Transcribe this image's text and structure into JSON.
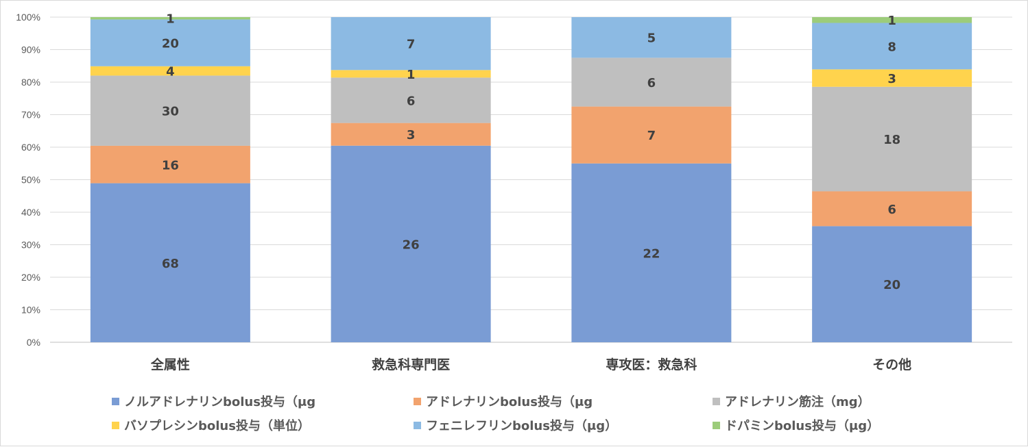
{
  "chart_data": {
    "type": "bar",
    "stacked": "percent",
    "categories": [
      "全属性",
      "救急科専門医",
      "専攻医：救急科",
      "その他"
    ],
    "series": [
      {
        "name": "ノルアドレナリンbolus投与（μg）",
        "label": "ノルアドレナリンbolus投与（μg",
        "color": "#7a9cd4",
        "values": [
          68,
          26,
          22,
          20
        ]
      },
      {
        "name": "アドレナリンbolus投与（μg）",
        "label": "アドレナリンbolus投与（μg",
        "color": "#f2a36e",
        "values": [
          16,
          3,
          7,
          6
        ]
      },
      {
        "name": "アドレナリン筋注（mg）",
        "label": "アドレナリン筋注（mg）",
        "color": "#bfbfbf",
        "values": [
          30,
          6,
          6,
          18
        ]
      },
      {
        "name": "バソプレシンbolus投与（単位）",
        "label": "バソプレシンbolus投与（単位）",
        "color": "#ffd34d",
        "values": [
          4,
          1,
          0,
          3
        ]
      },
      {
        "name": "フェニレフリンbolus投与（μg）",
        "label": "フェニレフリンbolus投与（μg）",
        "color": "#8cbae3",
        "values": [
          20,
          7,
          5,
          8
        ]
      },
      {
        "name": "ドパミンbolus投与（μg）",
        "label": "ドパミンbolus投与（μg）",
        "color": "#9ccc7a",
        "values": [
          1,
          0,
          0,
          1
        ]
      }
    ],
    "yticks": [
      "0%",
      "10%",
      "20%",
      "30%",
      "40%",
      "50%",
      "60%",
      "70%",
      "80%",
      "90%",
      "100%"
    ],
    "ylim": [
      0,
      100
    ],
    "grid": true,
    "legend_position": "bottom",
    "title": "",
    "xlabel": "",
    "ylabel": ""
  }
}
